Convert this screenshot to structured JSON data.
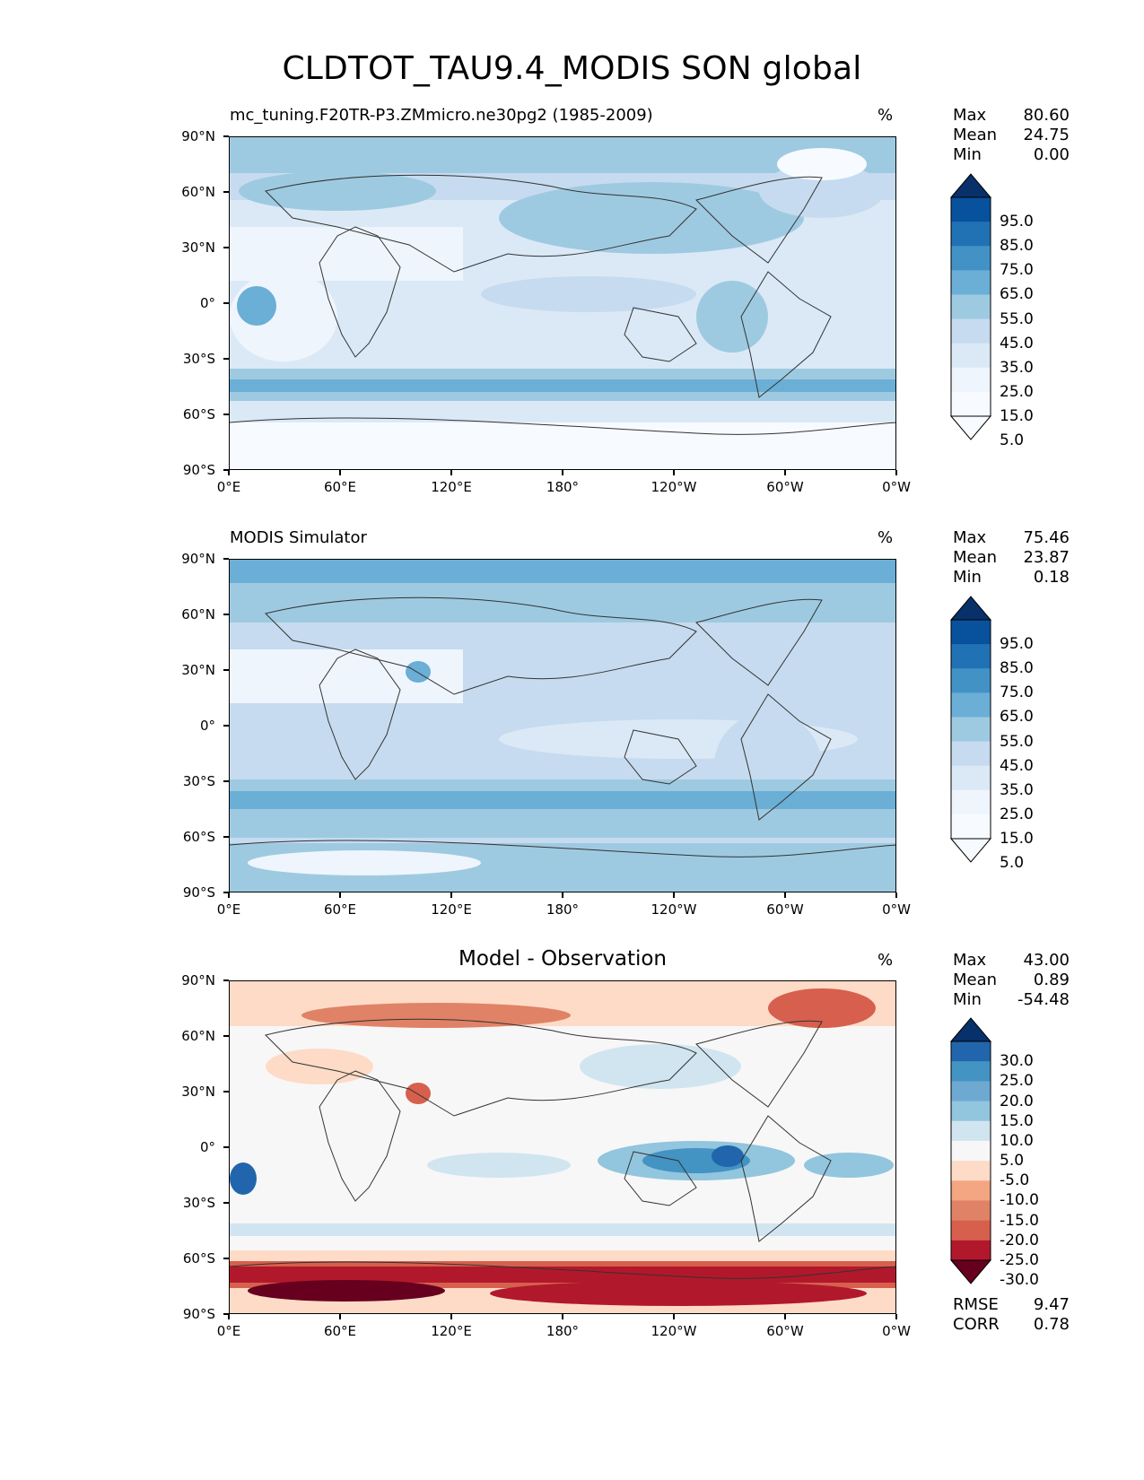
{
  "title": "CLDTOT_TAU9.4_MODIS SON global",
  "axes": {
    "lat_labels": [
      "90°N",
      "60°N",
      "30°N",
      "0°",
      "30°S",
      "60°S",
      "90°S"
    ],
    "lon_labels": [
      "0°E",
      "60°E",
      "120°E",
      "180°",
      "120°W",
      "60°W",
      "0°W"
    ]
  },
  "panels": [
    {
      "subtitle": "mc_tuning.F20TR-P3.ZMmicro.ne30pg2 (1985-2009)",
      "center_title": "",
      "units": "%",
      "stats": [
        {
          "label": "Max",
          "value": "80.60"
        },
        {
          "label": "Mean",
          "value": "24.75"
        },
        {
          "label": "Min",
          "value": "0.00"
        }
      ],
      "colorbar": {
        "labels": [
          "95.0",
          "85.0",
          "75.0",
          "65.0",
          "55.0",
          "45.0",
          "35.0",
          "25.0",
          "15.0",
          "5.0"
        ],
        "colors": [
          "#08306b",
          "#08519c",
          "#2171b5",
          "#4292c6",
          "#6baed6",
          "#9ecae1",
          "#c6dbef",
          "#dbe9f6",
          "#eff5fc",
          "#f7fbff"
        ]
      },
      "extra_stats": []
    },
    {
      "subtitle": "MODIS Simulator",
      "center_title": "",
      "units": "%",
      "stats": [
        {
          "label": "Max",
          "value": "75.46"
        },
        {
          "label": "Mean",
          "value": "23.87"
        },
        {
          "label": "Min",
          "value": "0.18"
        }
      ],
      "colorbar": {
        "labels": [
          "95.0",
          "85.0",
          "75.0",
          "65.0",
          "55.0",
          "45.0",
          "35.0",
          "25.0",
          "15.0",
          "5.0"
        ],
        "colors": [
          "#08306b",
          "#08519c",
          "#2171b5",
          "#4292c6",
          "#6baed6",
          "#9ecae1",
          "#c6dbef",
          "#dbe9f6",
          "#eff5fc",
          "#f7fbff"
        ]
      },
      "extra_stats": []
    },
    {
      "subtitle": "",
      "center_title": "Model - Observation",
      "units": "%",
      "stats": [
        {
          "label": "Max",
          "value": "43.00"
        },
        {
          "label": "Mean",
          "value": "0.89"
        },
        {
          "label": "Min",
          "value": "-54.48"
        }
      ],
      "colorbar": {
        "labels": [
          "30.0",
          "25.0",
          "20.0",
          "15.0",
          "10.0",
          "5.0",
          "-5.0",
          "-10.0",
          "-15.0",
          "-20.0",
          "-25.0",
          "-30.0"
        ],
        "colors": [
          "#08306b",
          "#2166ac",
          "#4393c3",
          "#6ea9d2",
          "#92c5de",
          "#d1e5f0",
          "#f7f7f7",
          "#fddbc7",
          "#f4a582",
          "#e08266",
          "#d6604d",
          "#b2182b",
          "#67001f"
        ]
      },
      "extra_stats": [
        {
          "label": "RMSE",
          "value": "9.47"
        },
        {
          "label": "CORR",
          "value": "0.78"
        }
      ]
    }
  ]
}
